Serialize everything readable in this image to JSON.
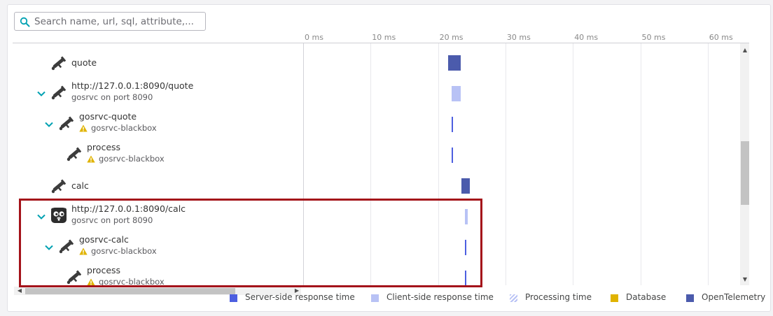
{
  "search": {
    "placeholder": "Search name, url, sql, attribute,..."
  },
  "axis": {
    "ticks": [
      "0 ms",
      "10 ms",
      "20 ms",
      "30 ms",
      "40 ms",
      "50 ms",
      "60 ms"
    ]
  },
  "rows": [
    {
      "name": "quote",
      "sub": "",
      "icon": "instrument-icon",
      "expanded": false,
      "warning": false,
      "bar_start_ms": 21.5,
      "bar_end_ms": 23.4,
      "bar_type": "opentelemetry"
    },
    {
      "name": "http://127.0.0.1:8090/quote",
      "sub": "gosrvc on port 8090",
      "icon": "instrument-icon",
      "expanded": true,
      "warning": false,
      "bar_start_ms": 22.0,
      "bar_end_ms": 23.4,
      "bar_type": "client-side"
    },
    {
      "name": "gosrvc-quote",
      "sub": "gosrvc-blackbox",
      "icon": "instrument-icon",
      "expanded": true,
      "warning": true,
      "bar_start_ms": 22.0,
      "bar_end_ms": 22.2,
      "bar_type": "server-side"
    },
    {
      "name": "process",
      "sub": "gosrvc-blackbox",
      "icon": "instrument-icon",
      "expanded": false,
      "warning": true,
      "bar_start_ms": 22.0,
      "bar_end_ms": 22.2,
      "bar_type": "server-side"
    },
    {
      "name": "calc",
      "sub": "",
      "icon": "instrument-icon",
      "expanded": false,
      "warning": false,
      "bar_start_ms": 23.5,
      "bar_end_ms": 24.7,
      "bar_type": "opentelemetry"
    },
    {
      "name": "http://127.0.0.1:8090/calc",
      "sub": "gosrvc on port 8090",
      "icon": "gopher-icon",
      "expanded": true,
      "warning": false,
      "bar_start_ms": 24.0,
      "bar_end_ms": 24.4,
      "bar_type": "client-side"
    },
    {
      "name": "gosrvc-calc",
      "sub": "gosrvc-blackbox",
      "icon": "instrument-icon",
      "expanded": true,
      "warning": true,
      "bar_start_ms": 24.0,
      "bar_end_ms": 24.2,
      "bar_type": "server-side"
    },
    {
      "name": "process",
      "sub": "gosrvc-blackbox",
      "icon": "instrument-icon",
      "expanded": false,
      "warning": true,
      "bar_start_ms": 24.0,
      "bar_end_ms": 24.2,
      "bar_type": "server-side"
    }
  ],
  "legend": [
    {
      "label": "Server-side response time",
      "color": "#4d5fe0",
      "pattern": "solid"
    },
    {
      "label": "Client-side response time",
      "color": "#b8c2f5",
      "pattern": "solid"
    },
    {
      "label": "Processing time",
      "color": "#b8c2f5",
      "pattern": "hatched"
    },
    {
      "label": "Database",
      "color": "#e0b300",
      "pattern": "solid"
    },
    {
      "label": "OpenTelemetry",
      "color": "#4b5bac",
      "pattern": "solid"
    }
  ],
  "colors": {
    "server-side": "#4d5fe0",
    "client-side": "#b8c2f5",
    "opentelemetry": "#4b5bac",
    "chevron": "#00a1b2",
    "warning": "#e0b300",
    "highlight": "#a4131a"
  }
}
